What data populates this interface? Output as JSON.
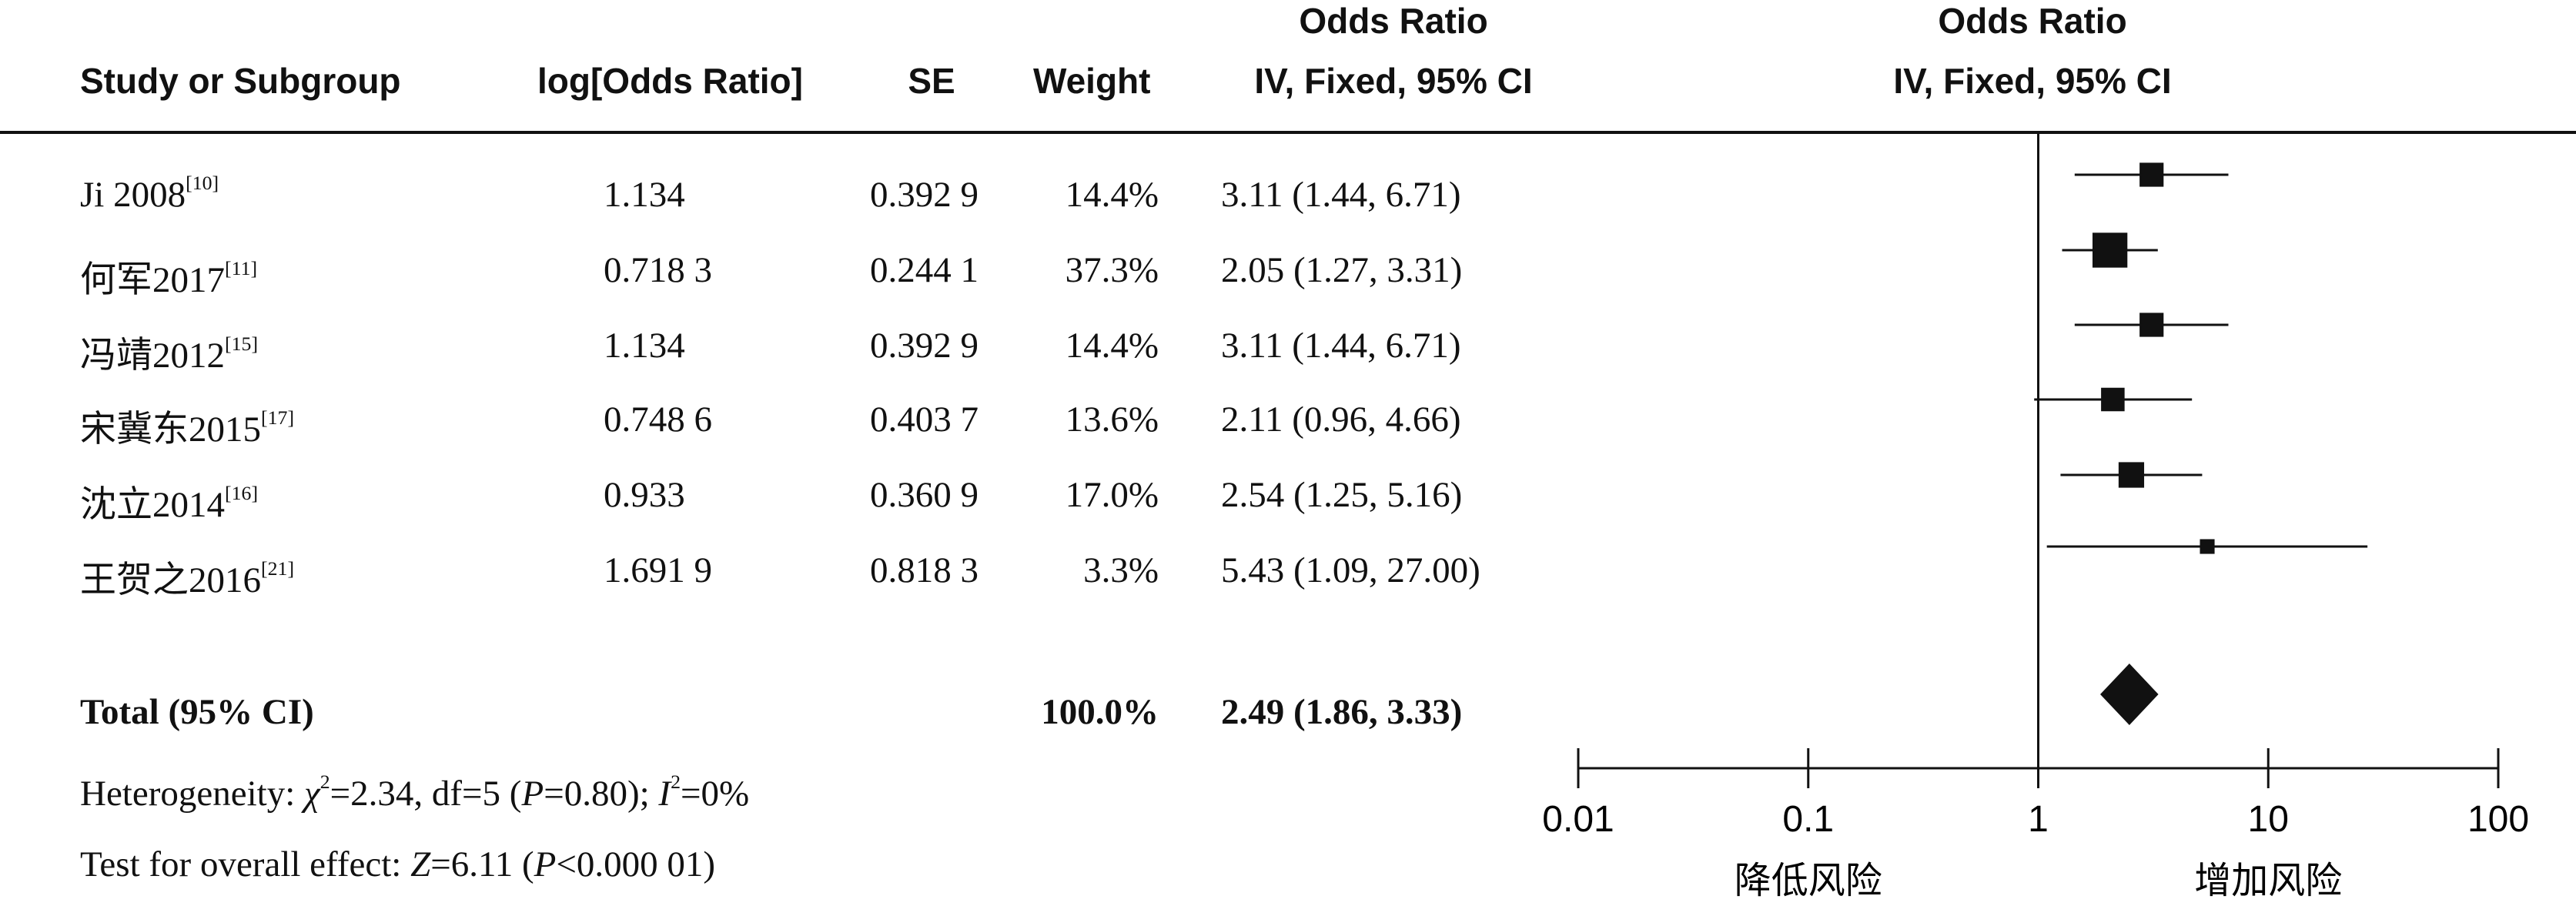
{
  "header": {
    "study": "Study or Subgroup",
    "log_or": "log[Odds Ratio]",
    "se": "SE",
    "weight": "Weight",
    "or_title": "Odds Ratio",
    "or_method": "IV, Fixed, 95% CI",
    "plot_title": "Odds Ratio",
    "plot_method": "IV, Fixed, 95% CI"
  },
  "studies": [
    {
      "name": "Ji 2008",
      "ref": "[10]",
      "log_or": "1.134",
      "se": "0.392 9",
      "weight": "14.4%",
      "ci_text": "3.11 (1.44, 6.71)"
    },
    {
      "name": "何军2017",
      "ref": "[11]",
      "log_or": "0.718 3",
      "se": "0.244 1",
      "weight": "37.3%",
      "ci_text": "2.05 (1.27, 3.31)"
    },
    {
      "name": "冯靖2012",
      "ref": "[15]",
      "log_or": "1.134",
      "se": "0.392 9",
      "weight": "14.4%",
      "ci_text": "3.11 (1.44, 6.71)"
    },
    {
      "name": "宋冀东2015",
      "ref": "[17]",
      "log_or": "0.748 6",
      "se": "0.403 7",
      "weight": "13.6%",
      "ci_text": "2.11 (0.96, 4.66)"
    },
    {
      "name": "沈立2014",
      "ref": "[16]",
      "log_or": "0.933",
      "se": "0.360 9",
      "weight": "17.0%",
      "ci_text": "2.54 (1.25, 5.16)"
    },
    {
      "name": "王贺之2016",
      "ref": "[21]",
      "log_or": "1.691 9",
      "se": "0.818 3",
      "weight": "3.3%",
      "ci_text": "5.43 (1.09, 27.00)"
    }
  ],
  "total": {
    "label": "Total (95% CI)",
    "weight": "100.0%",
    "ci_text": "2.49 (1.86, 3.33)"
  },
  "heterogeneity": {
    "prefix": "Heterogeneity: ",
    "chi": "χ",
    "chi_sup": "2",
    "chi_val": "=2.34, df=5 (",
    "p_sym": "P",
    "p_val": "=0.80); ",
    "i_sym": "I",
    "i_sup": "2",
    "i_val": "=0%"
  },
  "overall": {
    "prefix": "Test for overall effect: ",
    "z_sym": "Z",
    "z_val": "=6.11 (",
    "p_sym": "P",
    "p_val": "<0.000 01)"
  },
  "axis": {
    "left_label": "降低风险",
    "right_label": "增加风险"
  },
  "chart_data": {
    "type": "forest",
    "x_scale": "log",
    "xlim": [
      0.01,
      100
    ],
    "x_ticks": [
      "0.01",
      "0.1",
      "1",
      "10",
      "100"
    ],
    "reference_line": 1,
    "studies": [
      {
        "or": 3.11,
        "lo": 1.44,
        "hi": 6.71,
        "weight": 14.4
      },
      {
        "or": 2.05,
        "lo": 1.27,
        "hi": 3.31,
        "weight": 37.3
      },
      {
        "or": 3.11,
        "lo": 1.44,
        "hi": 6.71,
        "weight": 14.4
      },
      {
        "or": 2.11,
        "lo": 0.96,
        "hi": 4.66,
        "weight": 13.6
      },
      {
        "or": 2.54,
        "lo": 1.25,
        "hi": 5.16,
        "weight": 17.0
      },
      {
        "or": 5.43,
        "lo": 1.09,
        "hi": 27.0,
        "weight": 3.3
      }
    ],
    "total": {
      "or": 2.49,
      "lo": 1.86,
      "hi": 3.33
    }
  }
}
